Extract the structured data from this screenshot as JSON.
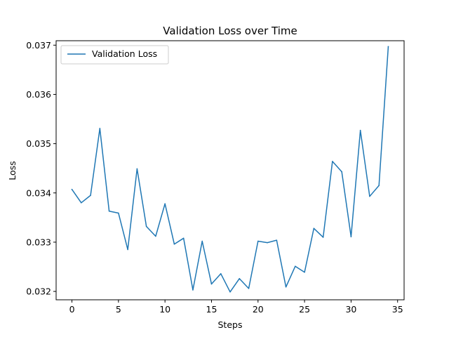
{
  "chart_data": {
    "type": "line",
    "title": "Validation Loss over Time",
    "xlabel": "Steps",
    "ylabel": "Loss",
    "xlim": [
      -1.7,
      35.7
    ],
    "ylim": [
      0.03183,
      0.03709
    ],
    "x_ticks": [
      0,
      5,
      10,
      15,
      20,
      25,
      30,
      35
    ],
    "y_ticks": [
      0.032,
      0.033,
      0.034,
      0.035,
      0.036,
      0.037
    ],
    "y_tick_labels": [
      "0.032",
      "0.033",
      "0.034",
      "0.035",
      "0.036",
      "0.037"
    ],
    "x_tick_labels": [
      "0",
      "5",
      "10",
      "15",
      "20",
      "25",
      "30",
      "35"
    ],
    "grid": false,
    "legend_position": "top-left",
    "series": [
      {
        "name": "Validation Loss",
        "color": "#1f77b4",
        "x": [
          0,
          1,
          2,
          3,
          4,
          5,
          6,
          7,
          8,
          9,
          10,
          11,
          12,
          13,
          14,
          15,
          16,
          17,
          18,
          19,
          20,
          21,
          22,
          23,
          24,
          25,
          26,
          27,
          28,
          29,
          30,
          31,
          32,
          33,
          34
        ],
        "values": [
          0.03407,
          0.0338,
          0.03395,
          0.03531,
          0.03363,
          0.03359,
          0.03285,
          0.03449,
          0.03332,
          0.03312,
          0.03378,
          0.03296,
          0.03308,
          0.03203,
          0.03302,
          0.03215,
          0.03236,
          0.03199,
          0.03226,
          0.03206,
          0.03302,
          0.03299,
          0.03304,
          0.03209,
          0.03251,
          0.03239,
          0.03328,
          0.0331,
          0.03464,
          0.03443,
          0.03311,
          0.03527,
          0.03393,
          0.03415,
          0.03697
        ]
      }
    ]
  }
}
